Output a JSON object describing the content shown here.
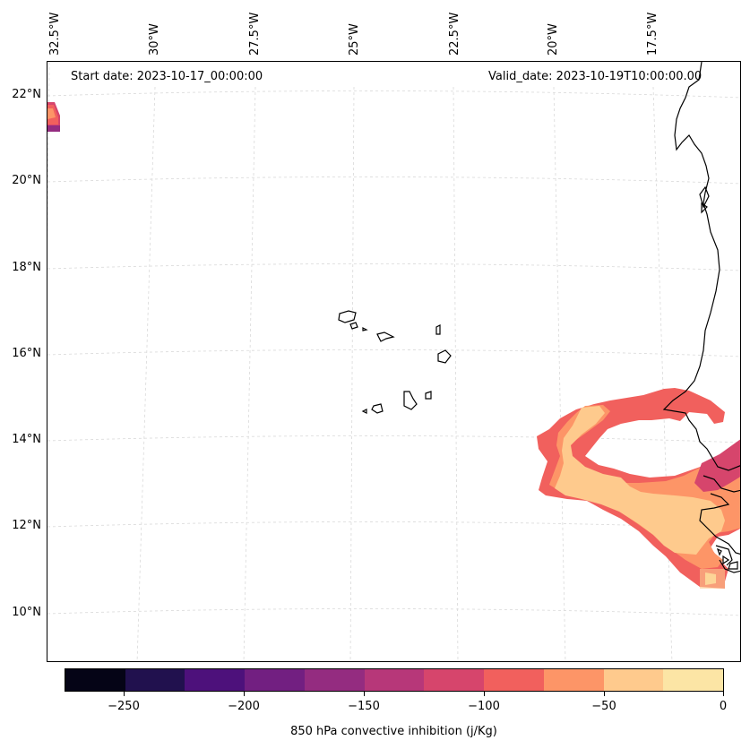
{
  "map": {
    "start_date": "Start date: 2023-10-17_00:00:00",
    "valid_date": "Valid_date: 2023-10-19T10:00:00.00",
    "lon_labels": [
      "32.5°W",
      "30°W",
      "27.5°W",
      "25°W",
      "22.5°W",
      "20°W",
      "17.5°W"
    ],
    "lat_labels": [
      "22°N",
      "20°N",
      "18°N",
      "16°N",
      "14°N",
      "12°N",
      "10°N"
    ]
  },
  "colorbar": {
    "label": "850 hPa convective inhibition (j/Kg)",
    "ticks": [
      "−250",
      "−200",
      "−150",
      "−100",
      "−50",
      "0"
    ],
    "colors": [
      "#050416",
      "#21114e",
      "#4d117b",
      "#721f81",
      "#942c80",
      "#b73779",
      "#d6456c",
      "#f1605d",
      "#fd9567",
      "#feca8d",
      "#fce5a5"
    ]
  }
}
